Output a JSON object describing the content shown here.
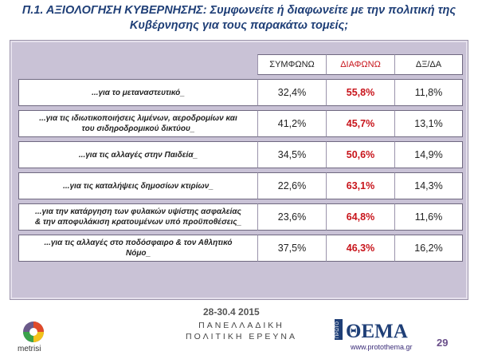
{
  "header": {
    "title_line1": "Π.1. ΑΞΙΟΛΟΓΗΣΗ ΚΥΒΕΡΝΗΣΗΣ: Συμφωνείτε ή διαφωνείτε με την πολιτική της",
    "title_line2": "Κυβέρνησης για τους παρακάτω τομείς;"
  },
  "table": {
    "columns": [
      "ΣΥΜΦΩΝΩ",
      "ΔΙΑΦΩΝΩ",
      "ΔΞ/ΔΑ"
    ],
    "rows": [
      {
        "label_l1": "...για το μεταναστευτικό_",
        "label_l2": "",
        "agree": "32,4%",
        "disagree": "55,8%",
        "dk": "11,8%"
      },
      {
        "label_l1": "...για τις ιδιωτικοποιήσεις λιμένων, αεροδρομίων και",
        "label_l2": "του σιδηροδρομικού δικτύου_",
        "agree": "41,2%",
        "disagree": "45,7%",
        "dk": "13,1%"
      },
      {
        "label_l1": "...για τις αλλαγές στην Παιδεία_",
        "label_l2": "",
        "agree": "34,5%",
        "disagree": "50,6%",
        "dk": "14,9%"
      },
      {
        "label_l1": "...για τις καταλήψεις δημοσίων κτιρίων_",
        "label_l2": "",
        "agree": "22,6%",
        "disagree": "63,1%",
        "dk": "14,3%"
      },
      {
        "label_l1": "...για την κατάργηση των φυλακών υψίστης ασφαλείας",
        "label_l2": "& την αποφυλάκιση κρατουμένων υπό προϋποθέσεις_",
        "agree": "23,6%",
        "disagree": "64,8%",
        "dk": "11,6%"
      },
      {
        "label_l1": "...για τις αλλαγές στο ποδόσφαιρο & τον Αθλητικό",
        "label_l2": "Νόμο_",
        "agree": "37,5%",
        "disagree": "46,3%",
        "dk": "16,2%"
      }
    ]
  },
  "footer": {
    "dates": "28-30.4 2015",
    "sub_line1": "ΠΑΝΕΛΛΑΔΙΚΗ",
    "sub_line2": "ΠΟΛΙΤΙΚΗ ΕΡΕΥΝΑ",
    "metrisi": "metrisi",
    "thema_brand": "ΘΕΜΑ",
    "thema_prefix": "ΠΡΩΤΟ",
    "thema_url": "www.protothema.gr",
    "page": "29"
  },
  "colors": {
    "title": "#1f3f77",
    "disagree": "#c8141b",
    "frame": "#c9c2d6"
  }
}
